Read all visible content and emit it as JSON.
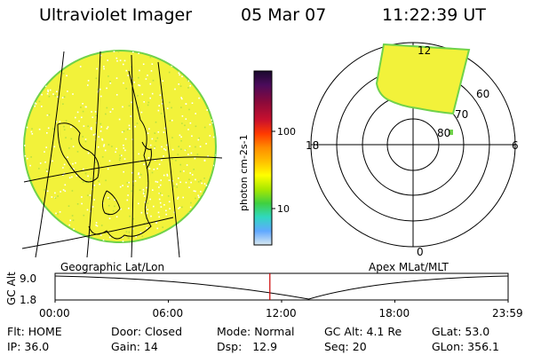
{
  "header": {
    "title": "Ultraviolet Imager",
    "date": "05 Mar 07",
    "time": "11:22:39 UT"
  },
  "colorbar": {
    "unit_label": "photon cm-2s-1",
    "ticks": [
      "100",
      "10"
    ],
    "colors": [
      "#1a0a2e",
      "#4b0b5b",
      "#8b0a3a",
      "#c8102e",
      "#ff3a00",
      "#ff8c00",
      "#ffc000",
      "#ffff00",
      "#a8e800",
      "#40d040",
      "#30d8c0",
      "#60a8ff",
      "#d8e8f0"
    ]
  },
  "polar": {
    "mlt_labels": {
      "top": "12",
      "left": "18",
      "right": "6",
      "bottom": "0"
    },
    "lat_labels": [
      "60",
      "70",
      "80"
    ]
  },
  "map_labels": {
    "left": "Geographic Lat/Lon",
    "right": "Apex MLat/MLT"
  },
  "timeline": {
    "ylabel": "GC Alt",
    "yticks": [
      "9.0",
      "1.8"
    ],
    "xticks": [
      "00:00",
      "06:00",
      "12:00",
      "18:00",
      "23:59"
    ],
    "current_fraction_of_day": 0.4741,
    "min_fraction_of_day": 0.56
  },
  "info": {
    "row1": [
      "Flt: HOME",
      "Door: Closed",
      "Mode: Normal",
      "GC Alt: 4.1 Re",
      "GLat: 53.0"
    ],
    "row2": [
      "IP: 36.0",
      "Gain: 14",
      "Dsp:   12.9",
      "Seq: 20",
      "GLon: 356.1"
    ]
  },
  "colors": {
    "image_fill": "#f2f23a",
    "image_edge": "#6fd24a",
    "time_marker": "#cc0000"
  }
}
